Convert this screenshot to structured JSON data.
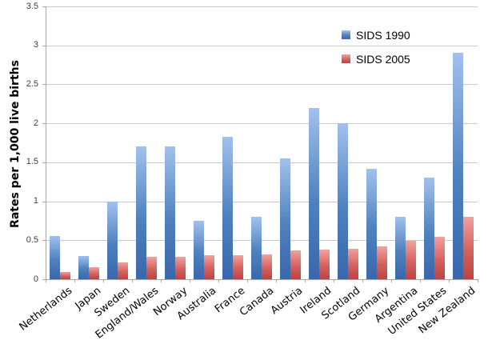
{
  "chart_data": {
    "type": "bar",
    "title": "",
    "xlabel": "",
    "ylabel": "Rates per 1,000 live births",
    "ylim": [
      0,
      3.5
    ],
    "ytick_step": 0.5,
    "grid": true,
    "legend_position": "top-right-inside",
    "categories": [
      "Netherlands",
      "Japan",
      "Sweden",
      "England/Wales",
      "Norway",
      "Australia",
      "France",
      "Canada",
      "Austria",
      "Ireland",
      "Scotland",
      "Germany",
      "Argentina",
      "United States",
      "New Zealand"
    ],
    "series": [
      {
        "name": "SIDS 1990",
        "color": "#4f81bd",
        "color_light": "#a2c1ec",
        "color_dark": "#3a67ac",
        "values": [
          0.55,
          0.3,
          1.0,
          1.7,
          1.7,
          0.75,
          1.83,
          0.8,
          1.55,
          2.2,
          2.0,
          1.42,
          0.8,
          1.3,
          2.9
        ]
      },
      {
        "name": "SIDS 2005",
        "color": "#d4615e",
        "color_light": "#f2a19d",
        "color_dark": "#bd4340",
        "values": [
          0.09,
          0.15,
          0.22,
          0.29,
          0.29,
          0.31,
          0.31,
          0.32,
          0.37,
          0.38,
          0.39,
          0.42,
          0.49,
          0.54,
          0.8
        ]
      }
    ],
    "axis_color": "#a6a6a6",
    "gridline_color": "#c9c9c9"
  }
}
